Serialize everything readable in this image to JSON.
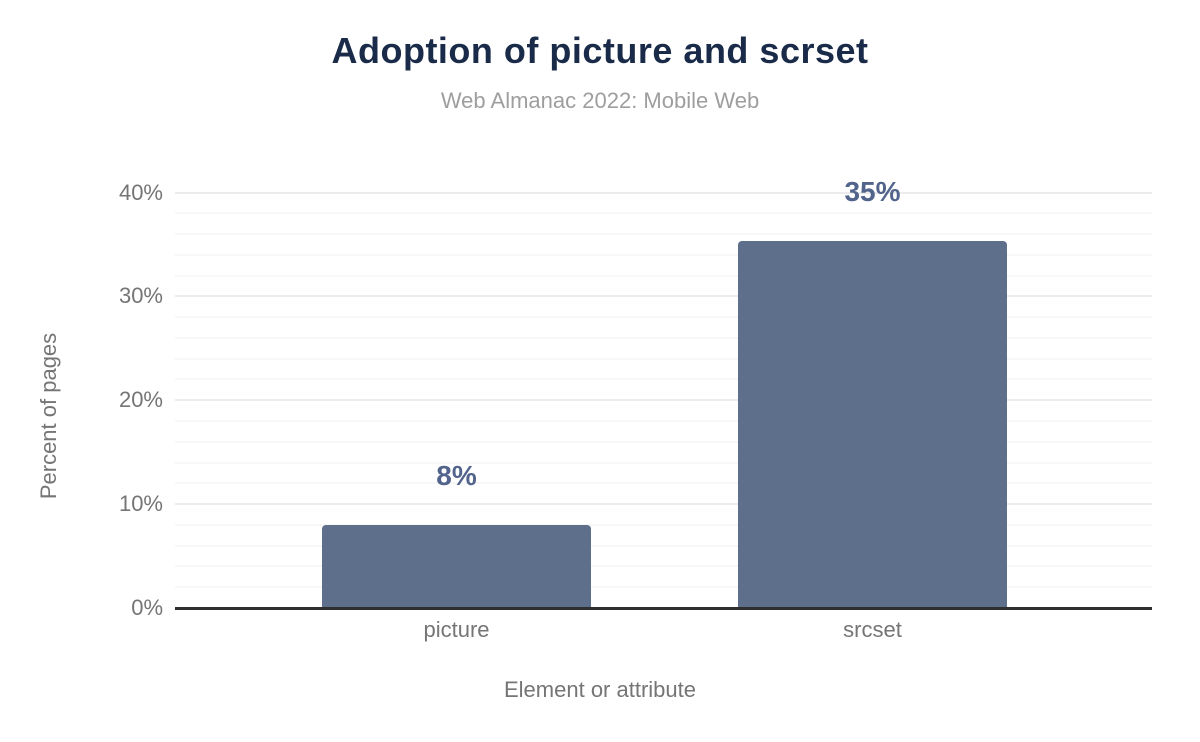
{
  "chart_data": {
    "type": "bar",
    "title": "Adoption of picture and scrset",
    "subtitle": "Web Almanac 2022: Mobile Web",
    "categories": [
      "picture",
      "srcset"
    ],
    "values": [
      8,
      35.3
    ],
    "value_labels": [
      "8%",
      "35%"
    ],
    "xlabel": "Element or attribute",
    "ylabel": "Percent of pages",
    "ylim": [
      0,
      40
    ],
    "yticks": [
      {
        "value": 0,
        "label": "0%"
      },
      {
        "value": 10,
        "label": "10%"
      },
      {
        "value": 20,
        "label": "20%"
      },
      {
        "value": 30,
        "label": "30%"
      },
      {
        "value": 40,
        "label": "40%"
      }
    ],
    "minor_gridline_step": 2,
    "grid": true,
    "legend": "none"
  },
  "colors": {
    "background": "#ffffff",
    "title": "#1a2b49",
    "subtitle": "#9e9e9e",
    "axis_text": "#757575",
    "bar": "#5e6f8b",
    "value_label": "#52648c",
    "grid_major": "#ececec",
    "grid_minor": "#f7f7f7",
    "axis_line": "#2e2e2e"
  }
}
